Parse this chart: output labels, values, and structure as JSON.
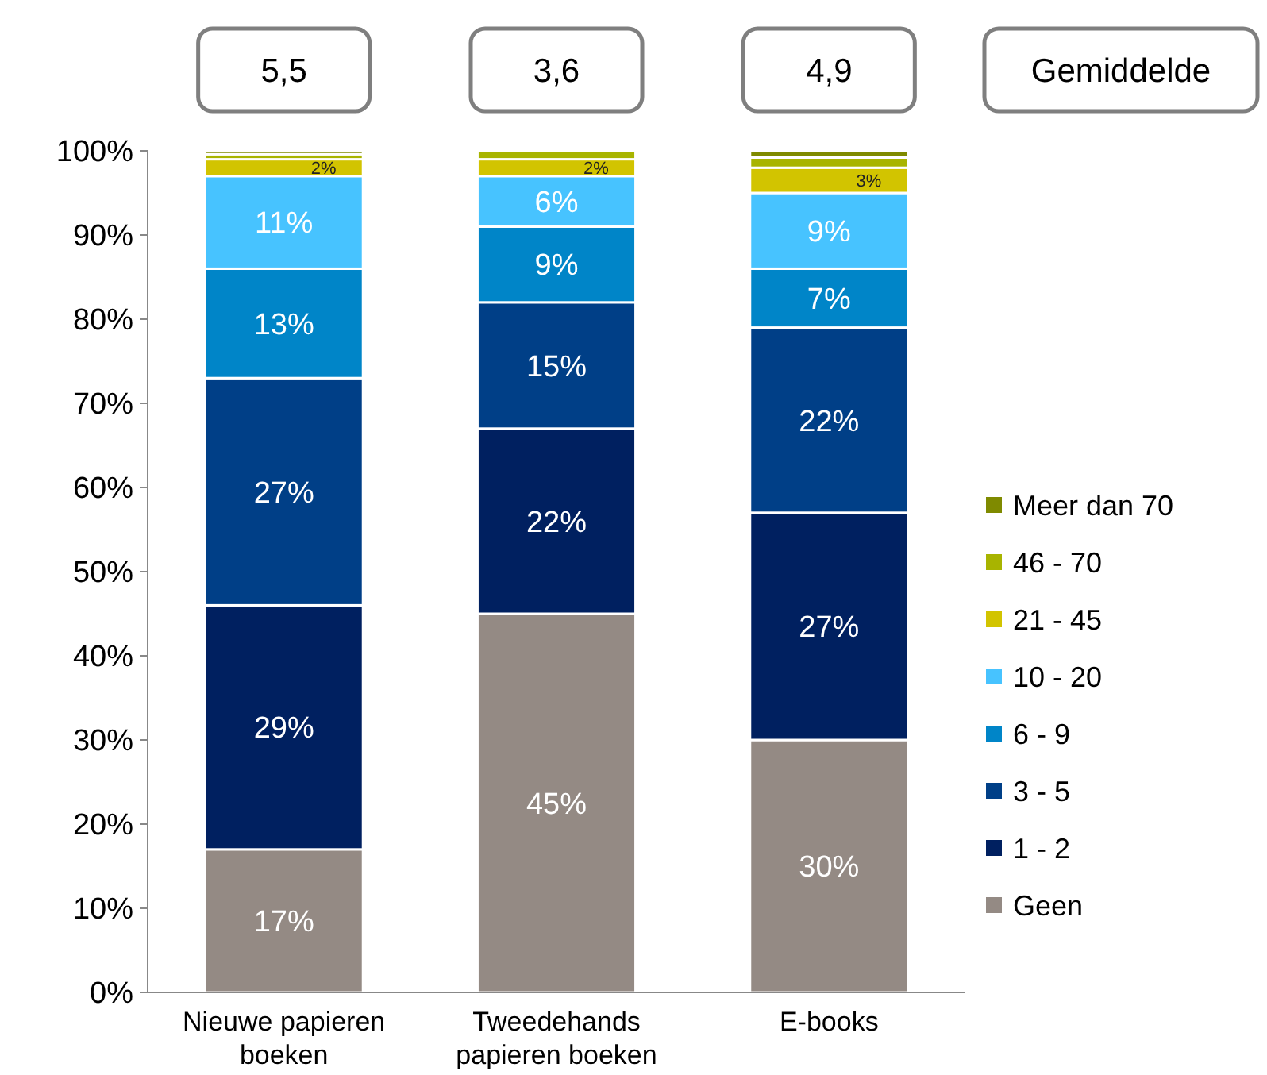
{
  "chart_data": {
    "type": "bar",
    "stacked": true,
    "categories": [
      "Nieuwe papieren boeken",
      "Tweedehands papieren boeken",
      "E-books"
    ],
    "ylim": [
      0,
      100
    ],
    "yticks": [
      {
        "value": 0,
        "label": "0%"
      },
      {
        "value": 10,
        "label": "10%"
      },
      {
        "value": 20,
        "label": "20%"
      },
      {
        "value": 30,
        "label": "30%"
      },
      {
        "value": 40,
        "label": "40%"
      },
      {
        "value": 50,
        "label": "50%"
      },
      {
        "value": 60,
        "label": "60%"
      },
      {
        "value": 70,
        "label": "70%"
      },
      {
        "value": 80,
        "label": "80%"
      },
      {
        "value": 90,
        "label": "90%"
      },
      {
        "value": 100,
        "label": "100%"
      }
    ],
    "legend": "right",
    "grid": false,
    "series": [
      {
        "name": "Geen",
        "color": "#948a84",
        "values": [
          17,
          45,
          30
        ],
        "value_labels": [
          "17%",
          "45%",
          "30%"
        ]
      },
      {
        "name": "1 -  2",
        "color": "#002060",
        "values": [
          29,
          22,
          27
        ],
        "value_labels": [
          "29%",
          "22%",
          "27%"
        ]
      },
      {
        "name": "3 -  5",
        "color": "#003f87",
        "values": [
          27,
          15,
          22
        ],
        "value_labels": [
          "27%",
          "15%",
          "22%"
        ]
      },
      {
        "name": "6 -  9",
        "color": "#0085c8",
        "values": [
          13,
          9,
          7
        ],
        "value_labels": [
          "13%",
          "9%",
          "7%"
        ]
      },
      {
        "name": "10 - 20",
        "color": "#47c3ff",
        "values": [
          11,
          6,
          9
        ],
        "value_labels": [
          "11%",
          "6%",
          "9%"
        ]
      },
      {
        "name": "21 -  45",
        "color": "#d2c400",
        "values": [
          2,
          2,
          3
        ],
        "value_labels": [
          "2%",
          "2%",
          "3%"
        ]
      },
      {
        "name": "46 -  70",
        "color": "#a8b400",
        "values": [
          0.6,
          1,
          1.2
        ],
        "value_labels": [
          null,
          null,
          null
        ]
      },
      {
        "name": "Meer dan 70",
        "color": "#7f8a00",
        "values": [
          0.4,
          0,
          0.8
        ],
        "value_labels": [
          null,
          null,
          null
        ]
      }
    ],
    "annotations": [
      "5,5",
      "3,6",
      "4,9",
      "Gemiddelde"
    ]
  }
}
